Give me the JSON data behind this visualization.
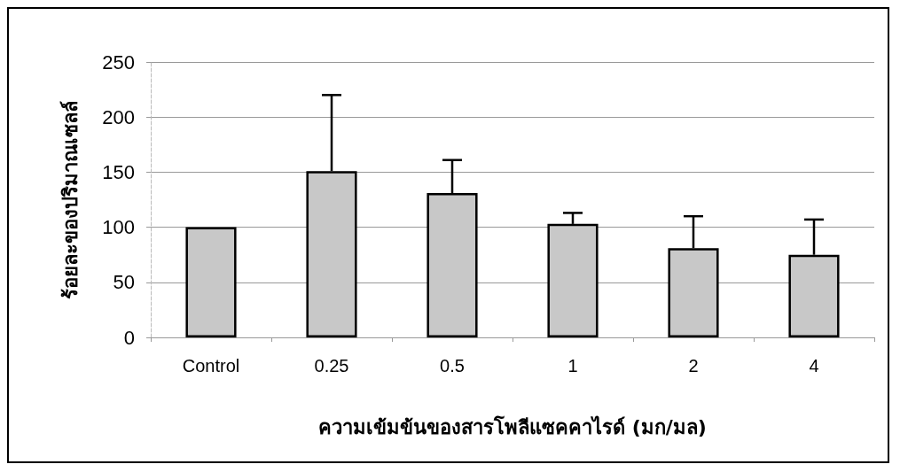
{
  "chart_data": {
    "type": "bar",
    "xlabel": "ความเข้มข้นของสารโพลีแซคคาไรด์ (มก/มล)",
    "ylabel": "ร้อยละของปริมาณเซลล์",
    "categories": [
      "Control",
      "0.25",
      "0.5",
      "1",
      "2",
      "4"
    ],
    "values": [
      100,
      151,
      131,
      103,
      81,
      75
    ],
    "errors": [
      null,
      [
        151,
        220
      ],
      [
        131,
        161
      ],
      [
        103,
        113
      ],
      [
        81,
        110
      ],
      [
        75,
        107
      ]
    ],
    "color": "#c8c8c8",
    "ylim": [
      0,
      250
    ],
    "yticks": [
      0,
      50,
      100,
      150,
      200,
      250
    ],
    "grid": "y"
  }
}
